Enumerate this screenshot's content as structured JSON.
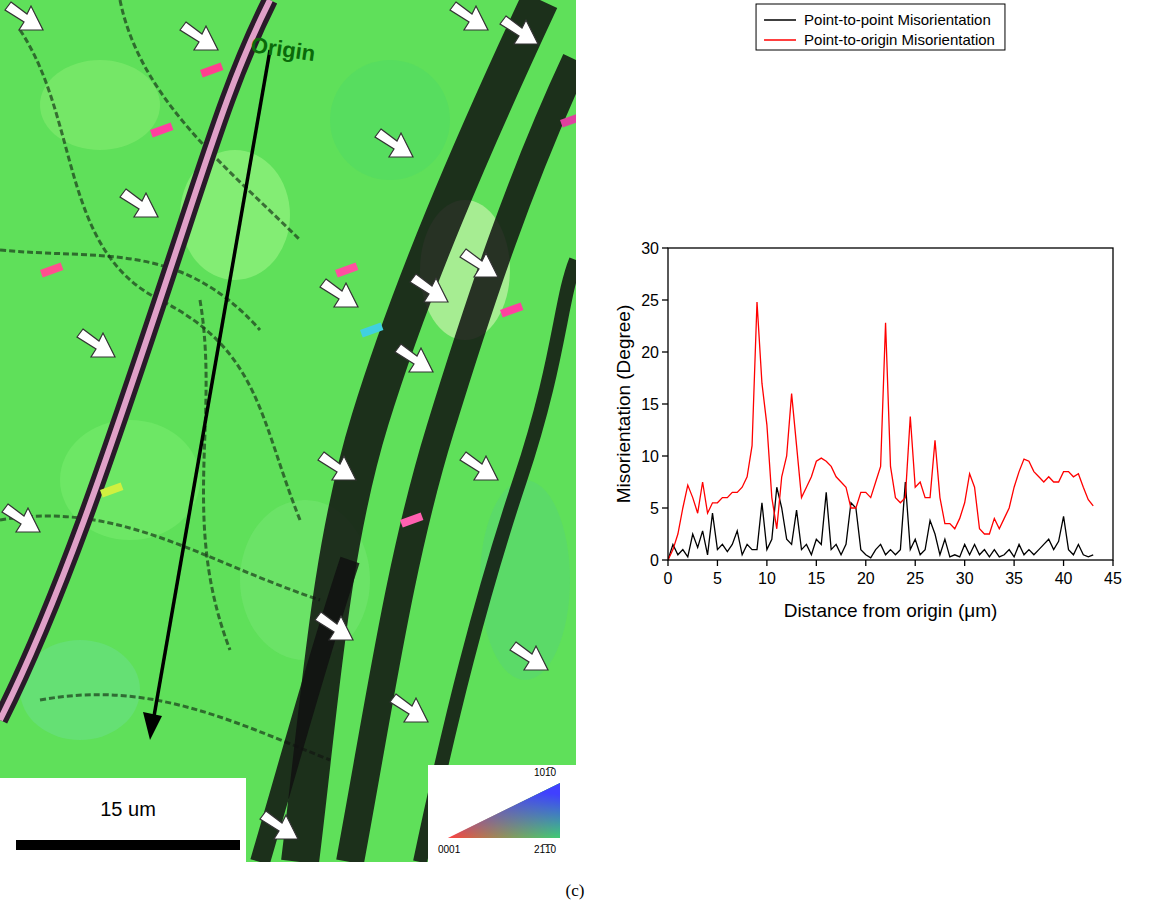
{
  "chart_data": {
    "type": "line",
    "xlabel": "Distance from origin (μm)",
    "ylabel": "Misorientation (Degree)",
    "xlim": [
      0,
      45
    ],
    "xticks": [
      0,
      5,
      10,
      15,
      20,
      25,
      30,
      35,
      40,
      45
    ],
    "ylim": [
      0,
      30
    ],
    "yticks": [
      0,
      5,
      10,
      15,
      20,
      25,
      30
    ],
    "legend": "top",
    "x": [
      0,
      0.5,
      1,
      1.5,
      2,
      2.5,
      3,
      3.5,
      4,
      4.5,
      5,
      5.5,
      6,
      6.5,
      7,
      7.5,
      8,
      8.5,
      9,
      9.5,
      10,
      10.5,
      11,
      11.5,
      12,
      12.5,
      13,
      13.5,
      14,
      14.5,
      15,
      15.5,
      16,
      16.5,
      17,
      17.5,
      18,
      18.5,
      19,
      19.5,
      20,
      20.5,
      21,
      21.5,
      22,
      22.5,
      23,
      23.5,
      24,
      24.5,
      25,
      25.5,
      26,
      26.5,
      27,
      27.5,
      28,
      28.5,
      29,
      29.5,
      30,
      30.5,
      31,
      31.5,
      32,
      32.5,
      33,
      33.5,
      34,
      34.5,
      35,
      35.5,
      36,
      36.5,
      37,
      37.5,
      38,
      38.5,
      39,
      39.5,
      40,
      40.5,
      41,
      41.5,
      42,
      42.5,
      43
    ],
    "series": [
      {
        "name": "Point-to-point Misorientation",
        "color": "#000000",
        "values": [
          0,
          1.5,
          0.5,
          1,
          0.3,
          2.5,
          1.2,
          2.8,
          0.5,
          4.5,
          1,
          1.5,
          0.8,
          1.5,
          2.8,
          0.5,
          1.5,
          1,
          1,
          5.5,
          1,
          2,
          7,
          5,
          2,
          1.5,
          4.8,
          1,
          1.5,
          0.5,
          2,
          1.5,
          6.5,
          1,
          1.5,
          0.5,
          1.5,
          5.5,
          5,
          1,
          0.5,
          0.2,
          1,
          1.5,
          0.5,
          1,
          0.5,
          1,
          7.5,
          1,
          2,
          0.5,
          1,
          3.8,
          2.5,
          0.5,
          2,
          0.3,
          0.5,
          0.3,
          1.5,
          0.5,
          1.5,
          0.5,
          1,
          0.3,
          1,
          0.3,
          0.5,
          1,
          0.3,
          1.5,
          0.5,
          1,
          0.5,
          1,
          1.5,
          2,
          1,
          1.8,
          4.2,
          1,
          0.5,
          1.5,
          0.5,
          0.3,
          0.5
        ]
      },
      {
        "name": "Point-to-origin Misorientation",
        "color": "#ff0000",
        "values": [
          0,
          1,
          2.5,
          5,
          7.2,
          6,
          4.5,
          7.5,
          4.5,
          5.5,
          5.5,
          6,
          6,
          6.5,
          6.5,
          7,
          8,
          11,
          24.8,
          17,
          13,
          6,
          3,
          8,
          10,
          16,
          11,
          6,
          7,
          8,
          9.5,
          9.8,
          9.5,
          9,
          8,
          7.5,
          7,
          5,
          5,
          6.5,
          6.5,
          6,
          7.5,
          9,
          22.8,
          9,
          6,
          5.5,
          6,
          13.8,
          7,
          7.5,
          6,
          6,
          11.5,
          6,
          3.5,
          3.5,
          3,
          4,
          5.5,
          8.3,
          7,
          3,
          2.5,
          2.5,
          4,
          3,
          4,
          5,
          7,
          8.5,
          9.7,
          9.5,
          8.5,
          8,
          7.5,
          8,
          7.5,
          7.5,
          8.5,
          8.5,
          8,
          8.3,
          7,
          5.8,
          5.2
        ]
      }
    ]
  },
  "micrograph": {
    "origin_label": "Origin",
    "scale_bar": "15 um",
    "ipf_labels": [
      "101̅0",
      "0001",
      "21̅1̅0"
    ]
  },
  "caption": "(c)"
}
